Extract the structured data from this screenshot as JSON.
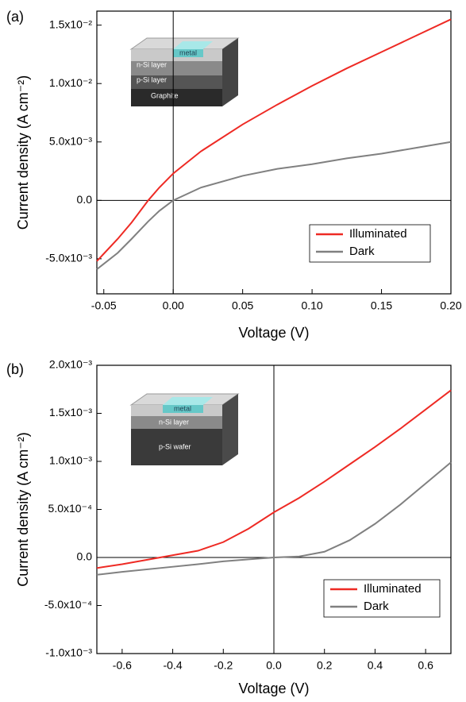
{
  "chart_data": [
    {
      "type": "line",
      "panel_label": "(a)",
      "x_label": "Voltage (V)",
      "y_label": "Current density (A cm⁻²)",
      "inset_labels": [
        "metal",
        "n-Si layer",
        "p-Si layer",
        "Graphite"
      ],
      "x": [
        -0.055,
        -0.04,
        -0.03,
        -0.018,
        -0.01,
        0,
        0.02,
        0.05,
        0.075,
        0.1,
        0.125,
        0.15,
        0.175,
        0.2
      ],
      "series": [
        {
          "name": "Illuminated",
          "color": "#ee2a24",
          "values": [
            -0.0052,
            -0.0033,
            -0.0019,
            0,
            0.0011,
            0.0023,
            0.0042,
            0.0065,
            0.0082,
            0.0098,
            0.0113,
            0.0127,
            0.0141,
            0.0155
          ]
        },
        {
          "name": "Dark",
          "color": "#808080",
          "values": [
            -0.0059,
            -0.0045,
            -0.0033,
            -0.0018,
            -0.0009,
            0,
            0.0011,
            0.0021,
            0.0027,
            0.0031,
            0.0036,
            0.004,
            0.0045,
            0.005
          ]
        }
      ],
      "xlim": [
        -0.055,
        0.2
      ],
      "xticks": [
        -0.05,
        {
          "value": 0,
          "label": "0.00"
        },
        0.05,
        {
          "value": 0.1,
          "label": "0.10"
        },
        0.15,
        {
          "value": 0.2,
          "label": "0.20"
        }
      ],
      "ylim": [
        -0.008,
        0.0162
      ],
      "yticks": [
        {
          "value": -0.005,
          "label": "-5.0x10⁻³"
        },
        {
          "value": 0,
          "label": "0.0"
        },
        {
          "value": 0.005,
          "label": "5.0x10⁻³"
        },
        {
          "value": 0.01,
          "label": "1.0x10⁻²"
        },
        {
          "value": 0.015,
          "label": "1.5x10⁻²"
        }
      ],
      "legend": "lower right"
    },
    {
      "type": "line",
      "panel_label": "(b)",
      "x_label": "Voltage (V)",
      "y_label": "Current density (A cm⁻²)",
      "inset_labels": [
        "metal",
        "n-Si layer",
        "p-Si wafer"
      ],
      "x": [
        -0.7,
        -0.6,
        -0.45,
        -0.3,
        -0.2,
        -0.1,
        0,
        0.1,
        0.2,
        0.3,
        0.4,
        0.5,
        0.6,
        0.7
      ],
      "series": [
        {
          "name": "Illuminated",
          "color": "#ee2a24",
          "values": [
            -0.00011,
            -7e-05,
            0,
            7e-05,
            0.00016,
            0.0003,
            0.00047,
            0.00062,
            0.00079,
            0.00097,
            0.00115,
            0.00134,
            0.00154,
            0.00174
          ]
        },
        {
          "name": "Dark",
          "color": "#808080",
          "values": [
            -0.00018,
            -0.00015,
            -0.00011,
            -7e-05,
            -4e-05,
            -2e-05,
            0,
            1e-05,
            6e-05,
            0.00018,
            0.00035,
            0.00055,
            0.00077,
            0.00099
          ]
        }
      ],
      "xlim": [
        -0.7,
        0.7
      ],
      "xticks": [
        -0.6,
        -0.4,
        -0.2,
        {
          "value": 0,
          "label": "0.0"
        },
        0.2,
        0.4,
        0.6
      ],
      "ylim": [
        -0.001,
        0.002
      ],
      "yticks": [
        {
          "value": -0.001,
          "label": "-1.0x10⁻³"
        },
        {
          "value": -0.0005,
          "label": "-5.0x10⁻⁴"
        },
        {
          "value": 0,
          "label": "0.0"
        },
        {
          "value": 0.0005,
          "label": "5.0x10⁻⁴"
        },
        {
          "value": 0.001,
          "label": "1.0x10⁻³"
        },
        {
          "value": 0.0015,
          "label": "1.5x10⁻³"
        },
        {
          "value": 0.002,
          "label": "2.0x10⁻³"
        }
      ],
      "legend": "lower right"
    }
  ]
}
